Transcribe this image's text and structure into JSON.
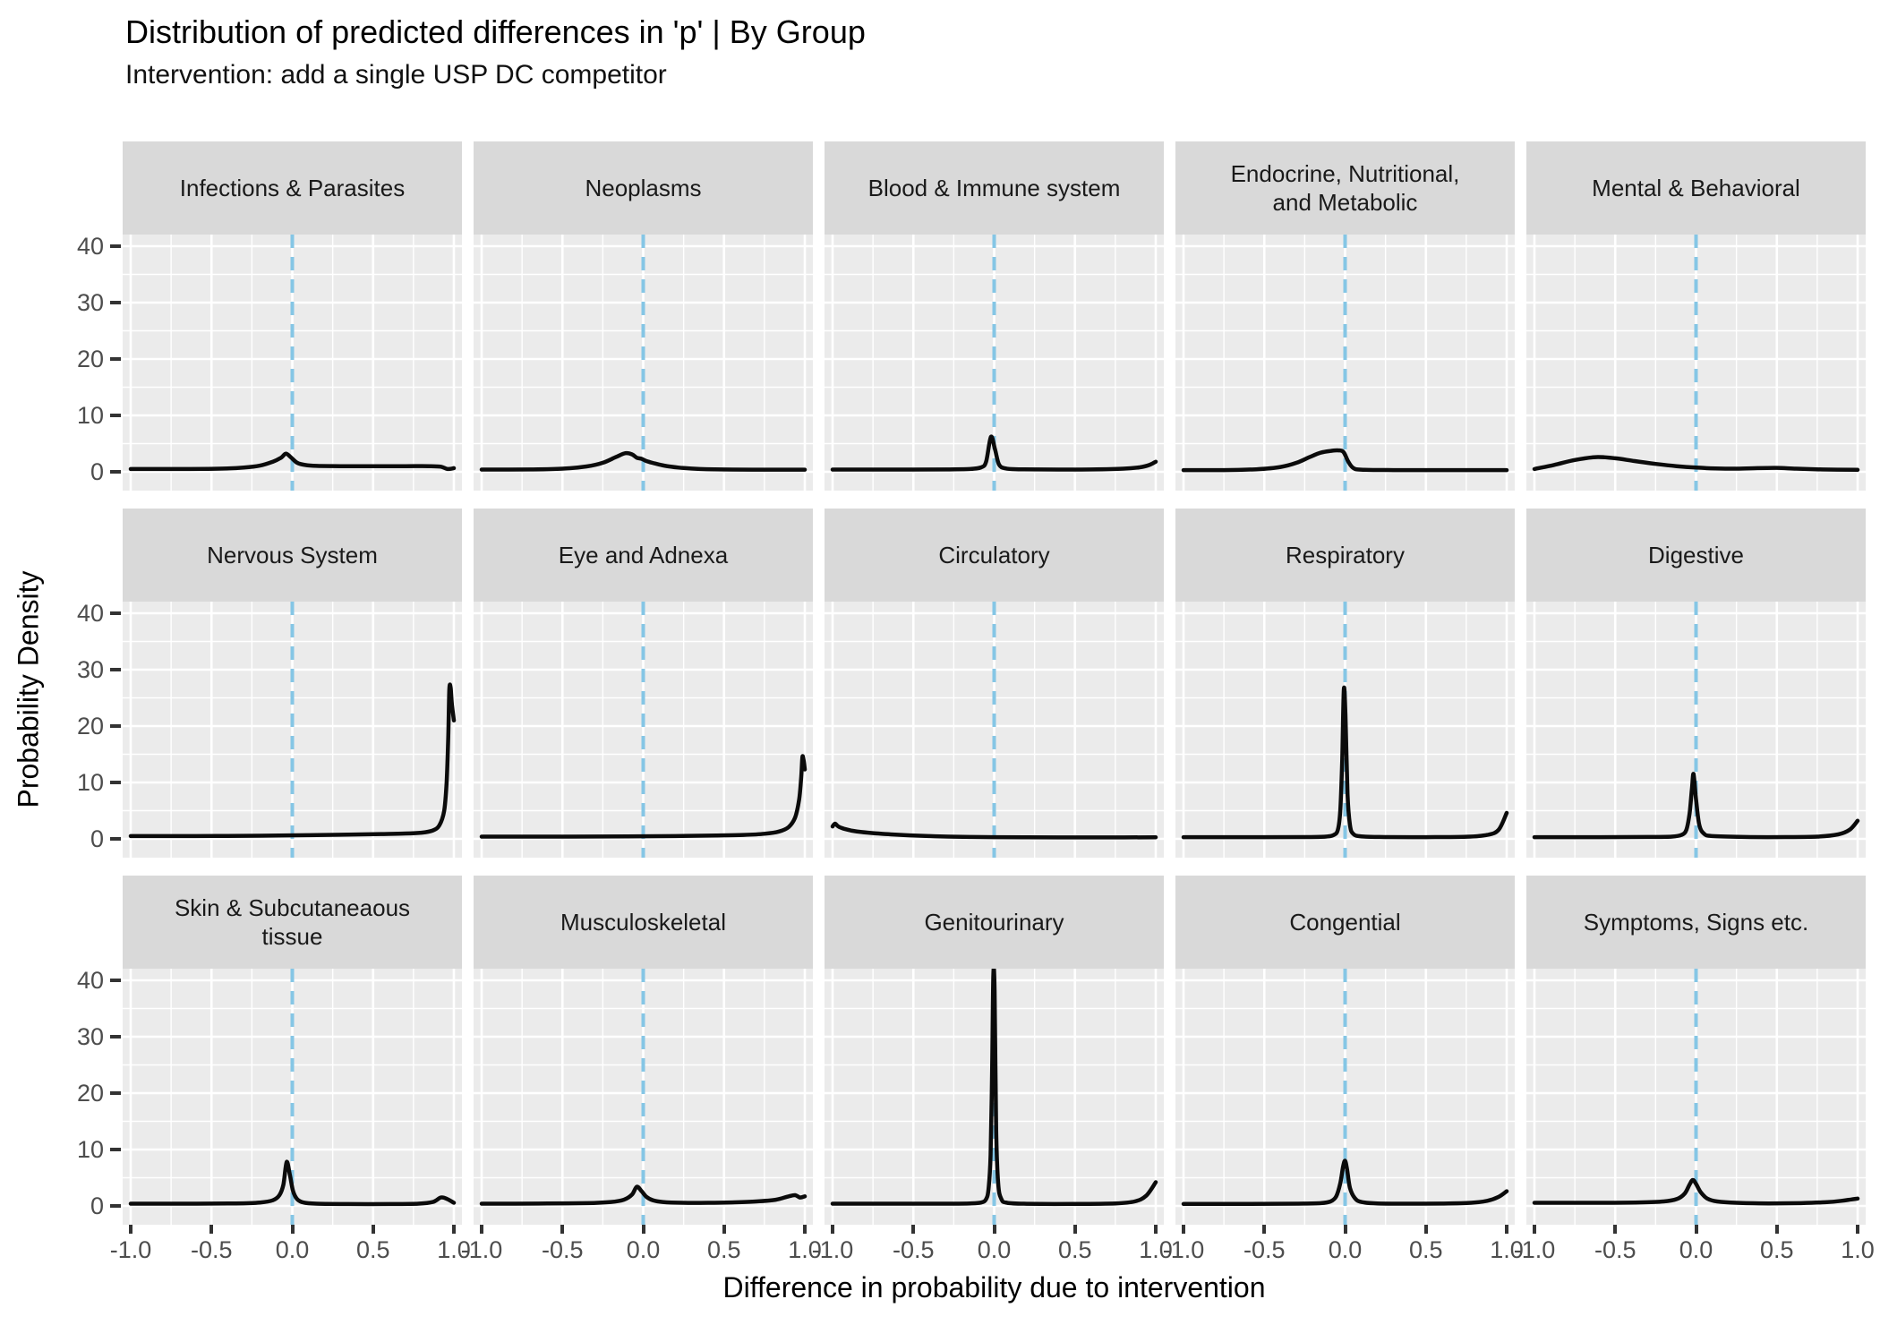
{
  "title": "Distribution of predicted differences in 'p' | By Group",
  "subtitle": "Intervention: add a single USP DC competitor",
  "axes": {
    "y_title": "Probability Density",
    "x_title": "Difference in probability due to intervention",
    "y_ticks": [
      40,
      30,
      20,
      10,
      0
    ],
    "x_ticks": [
      "-1.0",
      "-0.5",
      "0.0",
      "0.5",
      "1.0"
    ]
  },
  "colors": {
    "panel_bg": "#EBEBEB",
    "strip_bg": "#D9D9D9",
    "grid_line": "#FFFFFF",
    "curve": "#0B0B0B",
    "reference_line": "#85C6E5",
    "tick_text": "#4D4D4D",
    "tick_mark": "#333333"
  },
  "chart_data": {
    "type": "line",
    "subtype": "faceted-density",
    "x_domain": [
      -1,
      1
    ],
    "y_domain": [
      0,
      42
    ],
    "x_minor_gridlines": [
      -0.75,
      -0.25,
      0.25,
      0.75
    ],
    "y_minor_gridlines": [
      5,
      15,
      25,
      35
    ],
    "x_major_gridlines": [
      -1,
      -0.5,
      0,
      0.5,
      1
    ],
    "y_major_gridlines": [
      0,
      10,
      20,
      30,
      40
    ],
    "reference_line_x": 0,
    "panels_per_row": 5,
    "facets": [
      {
        "label": "Infections & Parasites",
        "points": [
          [
            -1,
            0.5
          ],
          [
            -0.7,
            0.5
          ],
          [
            -0.45,
            0.55
          ],
          [
            -0.3,
            0.75
          ],
          [
            -0.2,
            1.1
          ],
          [
            -0.12,
            1.8
          ],
          [
            -0.07,
            2.5
          ],
          [
            -0.04,
            3.2
          ],
          [
            -0.01,
            2.6
          ],
          [
            0.03,
            1.6
          ],
          [
            0.08,
            1.2
          ],
          [
            0.15,
            1.05
          ],
          [
            0.3,
            1.0
          ],
          [
            0.5,
            1.0
          ],
          [
            0.7,
            1.0
          ],
          [
            0.85,
            1.0
          ],
          [
            0.92,
            0.9
          ],
          [
            0.96,
            0.5
          ],
          [
            1,
            0.65
          ]
        ]
      },
      {
        "label": "Neoplasms",
        "points": [
          [
            -1,
            0.4
          ],
          [
            -0.7,
            0.42
          ],
          [
            -0.5,
            0.55
          ],
          [
            -0.35,
            0.95
          ],
          [
            -0.25,
            1.6
          ],
          [
            -0.17,
            2.6
          ],
          [
            -0.11,
            3.3
          ],
          [
            -0.07,
            3.1
          ],
          [
            -0.04,
            2.5
          ],
          [
            -0.01,
            2.3
          ],
          [
            0.02,
            1.9
          ],
          [
            0.07,
            1.5
          ],
          [
            0.13,
            1.1
          ],
          [
            0.22,
            0.75
          ],
          [
            0.35,
            0.5
          ],
          [
            0.55,
            0.4
          ],
          [
            0.8,
            0.38
          ],
          [
            1,
            0.38
          ]
        ]
      },
      {
        "label": "Blood & Immune system",
        "points": [
          [
            -1,
            0.4
          ],
          [
            -0.6,
            0.4
          ],
          [
            -0.3,
            0.42
          ],
          [
            -0.15,
            0.5
          ],
          [
            -0.08,
            0.8
          ],
          [
            -0.05,
            1.8
          ],
          [
            -0.02,
            6.2
          ],
          [
            0.005,
            4.0
          ],
          [
            0.03,
            1.3
          ],
          [
            0.07,
            0.6
          ],
          [
            0.15,
            0.45
          ],
          [
            0.4,
            0.4
          ],
          [
            0.6,
            0.42
          ],
          [
            0.8,
            0.55
          ],
          [
            0.9,
            0.8
          ],
          [
            0.96,
            1.2
          ],
          [
            1,
            1.8
          ]
        ]
      },
      {
        "label": "Endocrine, Nutritional,\nand Metabolic",
        "points": [
          [
            -1,
            0.3
          ],
          [
            -0.75,
            0.3
          ],
          [
            -0.55,
            0.45
          ],
          [
            -0.4,
            0.85
          ],
          [
            -0.3,
            1.6
          ],
          [
            -0.22,
            2.6
          ],
          [
            -0.15,
            3.4
          ],
          [
            -0.09,
            3.7
          ],
          [
            -0.04,
            3.8
          ],
          [
            -0.01,
            3.5
          ],
          [
            0.02,
            1.8
          ],
          [
            0.05,
            0.7
          ],
          [
            0.1,
            0.38
          ],
          [
            0.3,
            0.3
          ],
          [
            0.6,
            0.3
          ],
          [
            1,
            0.3
          ]
        ]
      },
      {
        "label": "Mental & Behavioral",
        "points": [
          [
            -1,
            0.5
          ],
          [
            -0.88,
            1.2
          ],
          [
            -0.75,
            2.1
          ],
          [
            -0.62,
            2.6
          ],
          [
            -0.5,
            2.4
          ],
          [
            -0.38,
            1.9
          ],
          [
            -0.25,
            1.4
          ],
          [
            -0.12,
            1.0
          ],
          [
            0,
            0.75
          ],
          [
            0.12,
            0.6
          ],
          [
            0.25,
            0.55
          ],
          [
            0.38,
            0.65
          ],
          [
            0.5,
            0.7
          ],
          [
            0.62,
            0.55
          ],
          [
            0.78,
            0.42
          ],
          [
            1,
            0.35
          ]
        ]
      },
      {
        "label": "Nervous System",
        "points": [
          [
            -1,
            0.5
          ],
          [
            -0.6,
            0.5
          ],
          [
            -0.2,
            0.55
          ],
          [
            0.1,
            0.65
          ],
          [
            0.35,
            0.75
          ],
          [
            0.55,
            0.85
          ],
          [
            0.7,
            0.95
          ],
          [
            0.8,
            1.1
          ],
          [
            0.87,
            1.5
          ],
          [
            0.91,
            2.4
          ],
          [
            0.94,
            5
          ],
          [
            0.955,
            10
          ],
          [
            0.965,
            18
          ],
          [
            0.972,
            26.5
          ],
          [
            0.98,
            26.8
          ],
          [
            0.987,
            24
          ],
          [
            1,
            21
          ]
        ]
      },
      {
        "label": "Eye and Adnexa",
        "points": [
          [
            -1,
            0.4
          ],
          [
            -0.5,
            0.4
          ],
          [
            -0.1,
            0.45
          ],
          [
            0.2,
            0.5
          ],
          [
            0.45,
            0.6
          ],
          [
            0.62,
            0.7
          ],
          [
            0.75,
            0.9
          ],
          [
            0.84,
            1.3
          ],
          [
            0.9,
            2.1
          ],
          [
            0.94,
            3.8
          ],
          [
            0.965,
            7
          ],
          [
            0.978,
            11
          ],
          [
            0.985,
            14.5
          ],
          [
            0.992,
            14
          ],
          [
            1,
            12.3
          ]
        ]
      },
      {
        "label": "Circulatory",
        "points": [
          [
            -1,
            2.2
          ],
          [
            -0.985,
            2.7
          ],
          [
            -0.965,
            2.2
          ],
          [
            -0.93,
            1.8
          ],
          [
            -0.88,
            1.45
          ],
          [
            -0.82,
            1.2
          ],
          [
            -0.74,
            1.0
          ],
          [
            -0.64,
            0.8
          ],
          [
            -0.52,
            0.62
          ],
          [
            -0.4,
            0.5
          ],
          [
            -0.28,
            0.4
          ],
          [
            -0.15,
            0.33
          ],
          [
            0,
            0.3
          ],
          [
            0.2,
            0.27
          ],
          [
            0.5,
            0.26
          ],
          [
            0.8,
            0.26
          ],
          [
            1,
            0.28
          ]
        ]
      },
      {
        "label": "Respiratory",
        "points": [
          [
            -1,
            0.3
          ],
          [
            -0.6,
            0.3
          ],
          [
            -0.25,
            0.32
          ],
          [
            -0.12,
            0.4
          ],
          [
            -0.07,
            0.7
          ],
          [
            -0.045,
            1.6
          ],
          [
            -0.03,
            5
          ],
          [
            -0.018,
            14
          ],
          [
            -0.008,
            26.5
          ],
          [
            0.002,
            22
          ],
          [
            0.015,
            8
          ],
          [
            0.03,
            2.5
          ],
          [
            0.05,
            0.9
          ],
          [
            0.1,
            0.45
          ],
          [
            0.25,
            0.32
          ],
          [
            0.5,
            0.3
          ],
          [
            0.75,
            0.38
          ],
          [
            0.88,
            0.7
          ],
          [
            0.95,
            1.6
          ],
          [
            1,
            4.6
          ]
        ]
      },
      {
        "label": "Digestive",
        "points": [
          [
            -1,
            0.3
          ],
          [
            -0.6,
            0.3
          ],
          [
            -0.3,
            0.33
          ],
          [
            -0.15,
            0.4
          ],
          [
            -0.09,
            0.7
          ],
          [
            -0.06,
            1.6
          ],
          [
            -0.04,
            4.5
          ],
          [
            -0.025,
            9
          ],
          [
            -0.015,
            11.5
          ],
          [
            0,
            7
          ],
          [
            0.02,
            2.5
          ],
          [
            0.05,
            0.9
          ],
          [
            0.1,
            0.5
          ],
          [
            0.3,
            0.33
          ],
          [
            0.55,
            0.32
          ],
          [
            0.75,
            0.4
          ],
          [
            0.88,
            0.8
          ],
          [
            0.95,
            1.6
          ],
          [
            1,
            3.2
          ]
        ]
      },
      {
        "label": "Skin & Subcutaneaous\ntissue",
        "points": [
          [
            -1,
            0.4
          ],
          [
            -0.65,
            0.4
          ],
          [
            -0.35,
            0.45
          ],
          [
            -0.2,
            0.6
          ],
          [
            -0.12,
            1.0
          ],
          [
            -0.08,
            1.9
          ],
          [
            -0.055,
            3.8
          ],
          [
            -0.035,
            7.8
          ],
          [
            -0.015,
            5.5
          ],
          [
            0.005,
            2.6
          ],
          [
            0.03,
            1.2
          ],
          [
            0.07,
            0.6
          ],
          [
            0.15,
            0.4
          ],
          [
            0.35,
            0.33
          ],
          [
            0.6,
            0.33
          ],
          [
            0.78,
            0.4
          ],
          [
            0.87,
            0.7
          ],
          [
            0.92,
            1.5
          ],
          [
            0.96,
            1.2
          ],
          [
            1,
            0.55
          ]
        ]
      },
      {
        "label": "Musculoskeletal",
        "points": [
          [
            -1,
            0.4
          ],
          [
            -0.65,
            0.42
          ],
          [
            -0.35,
            0.5
          ],
          [
            -0.2,
            0.7
          ],
          [
            -0.12,
            1.1
          ],
          [
            -0.07,
            2.0
          ],
          [
            -0.04,
            3.4
          ],
          [
            -0.01,
            2.6
          ],
          [
            0.02,
            1.6
          ],
          [
            0.06,
            1.0
          ],
          [
            0.12,
            0.7
          ],
          [
            0.25,
            0.55
          ],
          [
            0.4,
            0.55
          ],
          [
            0.55,
            0.62
          ],
          [
            0.7,
            0.8
          ],
          [
            0.82,
            1.1
          ],
          [
            0.9,
            1.7
          ],
          [
            0.94,
            1.9
          ],
          [
            0.97,
            1.5
          ],
          [
            1,
            1.7
          ]
        ]
      },
      {
        "label": "Genitourinary",
        "points": [
          [
            -1,
            0.4
          ],
          [
            -0.6,
            0.4
          ],
          [
            -0.3,
            0.4
          ],
          [
            -0.15,
            0.45
          ],
          [
            -0.08,
            0.6
          ],
          [
            -0.05,
            1.2
          ],
          [
            -0.035,
            3
          ],
          [
            -0.022,
            9
          ],
          [
            -0.012,
            25
          ],
          [
            -0.005,
            41
          ],
          [
            0.003,
            38
          ],
          [
            0.012,
            14
          ],
          [
            0.025,
            4
          ],
          [
            0.045,
            1.2
          ],
          [
            0.08,
            0.55
          ],
          [
            0.2,
            0.38
          ],
          [
            0.5,
            0.35
          ],
          [
            0.75,
            0.45
          ],
          [
            0.87,
            0.8
          ],
          [
            0.94,
            1.8
          ],
          [
            1,
            4.2
          ]
        ]
      },
      {
        "label": "Congential",
        "points": [
          [
            -1,
            0.35
          ],
          [
            -0.6,
            0.35
          ],
          [
            -0.3,
            0.4
          ],
          [
            -0.15,
            0.5
          ],
          [
            -0.09,
            0.8
          ],
          [
            -0.055,
            1.7
          ],
          [
            -0.03,
            4
          ],
          [
            -0.012,
            7
          ],
          [
            0,
            8
          ],
          [
            0.012,
            6.5
          ],
          [
            0.03,
            3.2
          ],
          [
            0.06,
            1.4
          ],
          [
            0.1,
            0.7
          ],
          [
            0.2,
            0.45
          ],
          [
            0.4,
            0.4
          ],
          [
            0.6,
            0.42
          ],
          [
            0.78,
            0.55
          ],
          [
            0.88,
            0.9
          ],
          [
            0.95,
            1.6
          ],
          [
            1,
            2.6
          ]
        ]
      },
      {
        "label": "Symptoms, Signs etc.",
        "points": [
          [
            -1,
            0.55
          ],
          [
            -0.65,
            0.55
          ],
          [
            -0.35,
            0.62
          ],
          [
            -0.2,
            0.8
          ],
          [
            -0.12,
            1.2
          ],
          [
            -0.07,
            2.2
          ],
          [
            -0.04,
            3.8
          ],
          [
            -0.02,
            4.6
          ],
          [
            0,
            3.9
          ],
          [
            0.03,
            2.4
          ],
          [
            0.07,
            1.3
          ],
          [
            0.13,
            0.8
          ],
          [
            0.25,
            0.55
          ],
          [
            0.45,
            0.45
          ],
          [
            0.65,
            0.5
          ],
          [
            0.8,
            0.65
          ],
          [
            0.9,
            0.9
          ],
          [
            0.96,
            1.15
          ],
          [
            1,
            1.3
          ]
        ]
      }
    ]
  }
}
